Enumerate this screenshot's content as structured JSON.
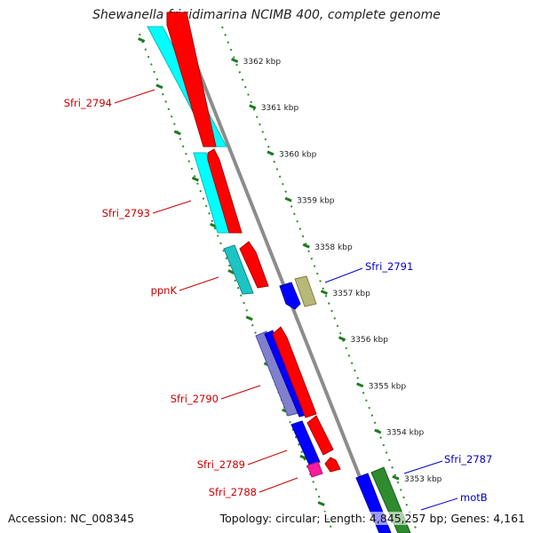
{
  "title": "Shewanella frigidimarina NCIMB 400, complete genome",
  "footer": {
    "accession": "Accession: NC_008345",
    "summary": "Topology: circular; Length: 4,845,257 bp; Genes: 4,161"
  },
  "colors": {
    "backbone": "#8c8c8c",
    "ruler_tick": "#1e7a1e",
    "label_left": "#cc0000",
    "label_right": "#0000cc",
    "red": "#ff0000",
    "cyan": "#00ffff",
    "teal": "#1cc4c4",
    "slate": "#8080cc",
    "blue": "#0000ff",
    "olive": "#b8b878",
    "green": "#2e8b2e",
    "magenta": "#ff1aa0"
  },
  "ruler": {
    "ticks": [
      "3362 kbp",
      "3361 kbp",
      "3360 kbp",
      "3359 kbp",
      "3358 kbp",
      "3357 kbp",
      "3356 kbp",
      "3355 kbp",
      "3354 kbp",
      "3353 kbp"
    ]
  },
  "genes": [
    {
      "label": "Sfri_2794",
      "side": "left"
    },
    {
      "label": "Sfri_2793",
      "side": "left"
    },
    {
      "label": "ppnK",
      "side": "left"
    },
    {
      "label": "Sfri_2790",
      "side": "left"
    },
    {
      "label": "Sfri_2789",
      "side": "left"
    },
    {
      "label": "Sfri_2788",
      "side": "left"
    },
    {
      "label": "Sfri_2791",
      "side": "right"
    },
    {
      "label": "Sfri_2787",
      "side": "right"
    },
    {
      "label": "motB",
      "side": "right"
    }
  ]
}
